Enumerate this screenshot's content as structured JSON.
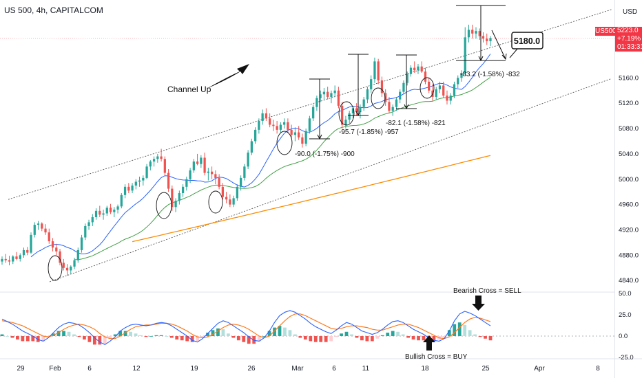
{
  "header": {
    "title": "US 500, 4h, CAPITALCOM",
    "currency": "USD",
    "symbol_tag": "US500",
    "last_price": "5223.0",
    "change": "+7.19%",
    "countdown": "01:33:31"
  },
  "colors": {
    "up": "#26a69a",
    "down": "#ef5350",
    "ma_fast": "#2962ff",
    "ma_mid": "#43a047",
    "ma_slow": "#fb8c00",
    "macd": "#2962ff",
    "signal": "#ff7a1a",
    "price_line": "#f23645"
  },
  "annotations": {
    "target": "5180.0",
    "channel": "Channel Up",
    "bearish": "Bearish Cross = SELL",
    "bullish": "Bullish Cross = BUY",
    "drop1": "-90.0 (-1.75%) -900",
    "drop2": "-95.7 (-1.85%) -957",
    "drop3": "-82.1 (-1.58%) -821",
    "drop4": "-83.2 (-1.58%) -832"
  },
  "chart_data": [
    {
      "type": "candlestick",
      "title": "US 500, 4h, CAPITALCOM",
      "ylim": [
        4825,
        5245
      ],
      "y_ticks": [
        "5160.0",
        "5120.0",
        "5080.0",
        "5040.0",
        "5000.0",
        "4960.0",
        "4920.0",
        "4880.0",
        "4840.0"
      ],
      "x_ticks": [
        "29",
        "Feb",
        "6",
        "12",
        "19",
        "26",
        "Mar",
        "6",
        "11",
        "18",
        "25",
        "Apr",
        "8"
      ],
      "price_line": 5223.0,
      "legend": "none",
      "grid": false,
      "candles": [
        [
          4870,
          4878,
          4865,
          4874
        ],
        [
          4874,
          4882,
          4868,
          4872
        ],
        [
          4872,
          4879,
          4864,
          4870
        ],
        [
          4870,
          4880,
          4866,
          4878
        ],
        [
          4878,
          4885,
          4872,
          4874
        ],
        [
          4874,
          4883,
          4870,
          4880
        ],
        [
          4880,
          4892,
          4876,
          4888
        ],
        [
          4888,
          4893,
          4880,
          4884
        ],
        [
          4884,
          4916,
          4882,
          4912
        ],
        [
          4912,
          4932,
          4908,
          4928
        ],
        [
          4928,
          4934,
          4920,
          4930
        ],
        [
          4930,
          4932,
          4918,
          4922
        ],
        [
          4922,
          4929,
          4912,
          4916
        ],
        [
          4916,
          4922,
          4898,
          4902
        ],
        [
          4902,
          4907,
          4886,
          4892
        ],
        [
          4892,
          4898,
          4880,
          4886
        ],
        [
          4886,
          4890,
          4864,
          4868
        ],
        [
          4868,
          4874,
          4856,
          4860
        ],
        [
          4860,
          4866,
          4848,
          4856
        ],
        [
          4856,
          4864,
          4850,
          4862
        ],
        [
          4862,
          4876,
          4858,
          4872
        ],
        [
          4872,
          4892,
          4868,
          4888
        ],
        [
          4888,
          4912,
          4884,
          4908
        ],
        [
          4908,
          4930,
          4904,
          4926
        ],
        [
          4926,
          4936,
          4920,
          4932
        ],
        [
          4932,
          4945,
          4926,
          4940
        ],
        [
          4940,
          4954,
          4936,
          4950
        ],
        [
          4950,
          4958,
          4940,
          4944
        ],
        [
          4944,
          4952,
          4936,
          4946
        ],
        [
          4946,
          4958,
          4942,
          4955
        ],
        [
          4955,
          4961,
          4945,
          4948
        ],
        [
          4948,
          4956,
          4940,
          4952
        ],
        [
          4952,
          4960,
          4946,
          4957
        ],
        [
          4957,
          4978,
          4954,
          4975
        ],
        [
          4975,
          4992,
          4970,
          4988
        ],
        [
          4988,
          4994,
          4978,
          4982
        ],
        [
          4982,
          4994,
          4978,
          4990
        ],
        [
          4990,
          5000,
          4984,
          4996
        ],
        [
          4996,
          5004,
          4988,
          4998
        ],
        [
          4998,
          5006,
          4990,
          5002
        ],
        [
          5002,
          5024,
          5000,
          5020
        ],
        [
          5020,
          5030,
          5014,
          5028
        ],
        [
          5028,
          5036,
          5020,
          5032
        ],
        [
          5032,
          5040,
          5026,
          5036
        ],
        [
          5036,
          5048,
          5028,
          5032
        ],
        [
          5032,
          5036,
          5006,
          5010
        ],
        [
          5010,
          5016,
          4980,
          4985
        ],
        [
          4985,
          4990,
          4950,
          4956
        ],
        [
          4956,
          4970,
          4948,
          4966
        ],
        [
          4966,
          4982,
          4960,
          4978
        ],
        [
          4978,
          4992,
          4972,
          4988
        ],
        [
          4988,
          5004,
          4982,
          5000
        ],
        [
          5000,
          5018,
          4994,
          5014
        ],
        [
          5014,
          5032,
          5010,
          5028
        ],
        [
          5028,
          5040,
          5022,
          5024
        ],
        [
          5024,
          5038,
          5018,
          5034
        ],
        [
          5034,
          5042,
          5006,
          5010
        ],
        [
          5010,
          5018,
          4998,
          5012
        ],
        [
          5012,
          5020,
          5000,
          5008
        ],
        [
          5008,
          5014,
          4992,
          5002
        ],
        [
          5002,
          5008,
          4984,
          4988
        ],
        [
          4988,
          4994,
          4968,
          4972
        ],
        [
          4972,
          4980,
          4962,
          4968
        ],
        [
          4968,
          4976,
          4956,
          4960
        ],
        [
          4960,
          4974,
          4956,
          4970
        ],
        [
          4970,
          4992,
          4966,
          4988
        ],
        [
          4988,
          5006,
          4982,
          5002
        ],
        [
          5002,
          5024,
          4998,
          5020
        ],
        [
          5020,
          5046,
          5016,
          5042
        ],
        [
          5042,
          5064,
          5038,
          5060
        ],
        [
          5060,
          5082,
          5056,
          5078
        ],
        [
          5078,
          5096,
          5072,
          5092
        ],
        [
          5092,
          5110,
          5086,
          5104
        ],
        [
          5104,
          5112,
          5092,
          5096
        ],
        [
          5096,
          5104,
          5082,
          5086
        ],
        [
          5086,
          5094,
          5076,
          5084
        ],
        [
          5084,
          5092,
          5072,
          5078
        ],
        [
          5078,
          5090,
          5074,
          5086
        ],
        [
          5086,
          5096,
          5080,
          5090
        ],
        [
          5090,
          5096,
          5074,
          5078
        ],
        [
          5078,
          5086,
          5064,
          5070
        ],
        [
          5070,
          5082,
          5060,
          5074
        ],
        [
          5074,
          5084,
          5062,
          5066
        ],
        [
          5066,
          5072,
          5050,
          5056
        ],
        [
          5056,
          5080,
          5052,
          5076
        ],
        [
          5076,
          5100,
          5072,
          5096
        ],
        [
          5096,
          5118,
          5092,
          5114
        ],
        [
          5114,
          5132,
          5108,
          5128
        ],
        [
          5128,
          5140,
          5122,
          5134
        ],
        [
          5134,
          5144,
          5126,
          5138
        ],
        [
          5138,
          5146,
          5126,
          5130
        ],
        [
          5130,
          5140,
          5120,
          5136
        ],
        [
          5136,
          5148,
          5130,
          5140
        ],
        [
          5140,
          5146,
          5112,
          5116
        ],
        [
          5116,
          5122,
          5080,
          5086
        ],
        [
          5086,
          5100,
          5080,
          5094
        ],
        [
          5094,
          5108,
          5088,
          5104
        ],
        [
          5104,
          5116,
          5096,
          5112
        ],
        [
          5112,
          5120,
          5100,
          5106
        ],
        [
          5106,
          5118,
          5096,
          5114
        ],
        [
          5114,
          5130,
          5108,
          5126
        ],
        [
          5126,
          5146,
          5120,
          5142
        ],
        [
          5142,
          5164,
          5136,
          5158
        ],
        [
          5158,
          5192,
          5152,
          5186
        ],
        [
          5186,
          5190,
          5150,
          5156
        ],
        [
          5156,
          5162,
          5130,
          5136
        ],
        [
          5136,
          5142,
          5116,
          5122
        ],
        [
          5122,
          5130,
          5104,
          5108
        ],
        [
          5108,
          5118,
          5100,
          5114
        ],
        [
          5114,
          5130,
          5108,
          5126
        ],
        [
          5126,
          5142,
          5120,
          5138
        ],
        [
          5138,
          5156,
          5134,
          5152
        ],
        [
          5152,
          5170,
          5148,
          5166
        ],
        [
          5166,
          5180,
          5162,
          5176
        ],
        [
          5176,
          5186,
          5168,
          5172
        ],
        [
          5172,
          5182,
          5166,
          5178
        ],
        [
          5178,
          5186,
          5168,
          5170
        ],
        [
          5170,
          5176,
          5150,
          5154
        ],
        [
          5154,
          5160,
          5136,
          5140
        ],
        [
          5140,
          5150,
          5124,
          5130
        ],
        [
          5130,
          5146,
          5126,
          5142
        ],
        [
          5142,
          5154,
          5136,
          5148
        ],
        [
          5148,
          5154,
          5128,
          5132
        ],
        [
          5132,
          5140,
          5118,
          5124
        ],
        [
          5124,
          5136,
          5118,
          5132
        ],
        [
          5132,
          5154,
          5128,
          5150
        ],
        [
          5150,
          5164,
          5144,
          5160
        ],
        [
          5160,
          5172,
          5154,
          5168
        ],
        [
          5168,
          5240,
          5164,
          5224
        ],
        [
          5224,
          5244,
          5216,
          5236
        ],
        [
          5236,
          5244,
          5222,
          5230
        ],
        [
          5230,
          5240,
          5222,
          5234
        ],
        [
          5234,
          5238,
          5220,
          5226
        ],
        [
          5226,
          5232,
          5216,
          5222
        ],
        [
          5222,
          5230,
          5212,
          5218
        ],
        [
          5218,
          5226,
          5210,
          5223
        ]
      ]
    },
    {
      "type": "bar+line",
      "title": "MACD",
      "ylim": [
        -25,
        50
      ],
      "y_ticks": [
        "50.0",
        "25.0",
        "0.0",
        "-25.0"
      ],
      "macd": [
        20,
        17,
        14,
        10,
        6,
        3,
        0,
        -4,
        -6,
        -2,
        4,
        10,
        14,
        16,
        15,
        13,
        9,
        4,
        -2,
        -7,
        -10,
        -6,
        -1,
        6,
        10,
        13,
        14,
        13,
        12,
        13,
        15,
        16,
        15,
        12,
        8,
        4,
        0,
        -5,
        -7,
        -3,
        3,
        9,
        15,
        18,
        16,
        12,
        8,
        4,
        -1,
        -5,
        -6,
        -2,
        6,
        16,
        24,
        28,
        30,
        28,
        24,
        20,
        15,
        11,
        8,
        5,
        3,
        7,
        12,
        16,
        14,
        10,
        6,
        4,
        2,
        4,
        8,
        13,
        17,
        18,
        16,
        12,
        8,
        5,
        2,
        -2,
        -5,
        -6,
        -3,
        6,
        18,
        26,
        29,
        27,
        24,
        20,
        16,
        12
      ],
      "signal": [
        18,
        17,
        16,
        14,
        12,
        9,
        6,
        3,
        0,
        -1,
        1,
        4,
        8,
        11,
        13,
        14,
        13,
        11,
        8,
        3,
        -1,
        -3,
        -3,
        0,
        4,
        8,
        11,
        12,
        13,
        13,
        14,
        15,
        15,
        14,
        12,
        9,
        6,
        2,
        -1,
        -2,
        -1,
        2,
        6,
        10,
        13,
        14,
        13,
        11,
        8,
        4,
        0,
        -2,
        0,
        6,
        12,
        18,
        23,
        26,
        26,
        24,
        21,
        18,
        15,
        12,
        9,
        8,
        9,
        11,
        12,
        12,
        11,
        10,
        8,
        7,
        7,
        9,
        11,
        13,
        14,
        14,
        12,
        10,
        7,
        4,
        1,
        -2,
        -3,
        -1,
        4,
        10,
        16,
        20,
        22,
        21,
        19,
        17
      ],
      "histogram": [
        2,
        0,
        -2,
        -4,
        -6,
        -6,
        -6,
        -7,
        -6,
        -1,
        3,
        6,
        6,
        5,
        2,
        -1,
        -4,
        -7,
        -10,
        -10,
        -9,
        -3,
        2,
        6,
        6,
        5,
        3,
        1,
        -1,
        0,
        1,
        1,
        0,
        -2,
        -4,
        -5,
        -6,
        -7,
        -6,
        -1,
        4,
        7,
        9,
        8,
        3,
        -2,
        -5,
        -7,
        -9,
        -9,
        -6,
        0,
        6,
        10,
        12,
        10,
        7,
        2,
        -2,
        -4,
        -6,
        -7,
        -7,
        -7,
        -6,
        -1,
        3,
        5,
        2,
        -2,
        -5,
        -6,
        -6,
        -3,
        1,
        4,
        6,
        5,
        2,
        -2,
        -4,
        -5,
        -5,
        -6,
        -6,
        -4,
        -2,
        7,
        14,
        16,
        13,
        7,
        2,
        -1,
        -3,
        -5
      ]
    }
  ]
}
